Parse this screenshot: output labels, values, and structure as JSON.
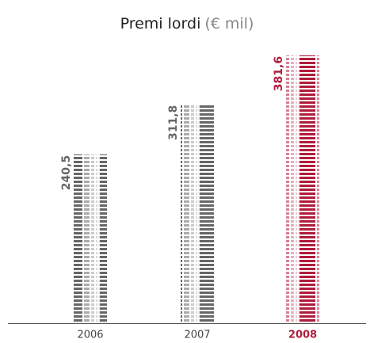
{
  "chart_data": {
    "type": "bar",
    "title": "Premi lordi",
    "unit": "(€ mil)",
    "categories": [
      "2006",
      "2007",
      "2008"
    ],
    "values": [
      240.5,
      311.8,
      381.6
    ],
    "value_labels": [
      "240,5",
      "311,8",
      "381,6"
    ],
    "colors": [
      "#666666",
      "#666666",
      "#b01c3c"
    ]
  }
}
